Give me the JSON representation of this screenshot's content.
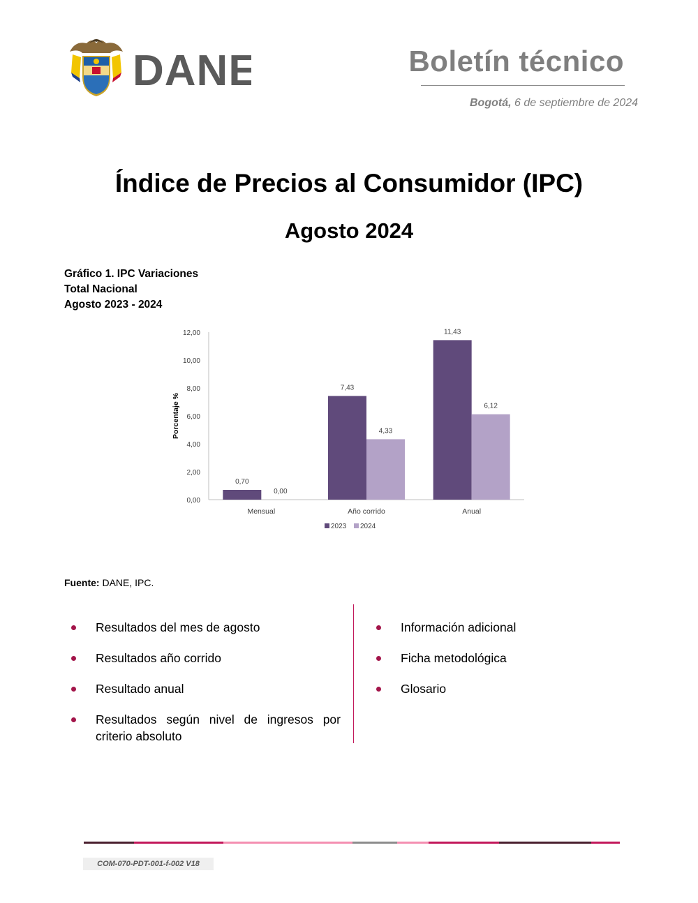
{
  "header": {
    "logo_text": "DANE",
    "title": "Boletín técnico",
    "date_city": "Bogotá,",
    "date_text": "6 de septiembre de 2024"
  },
  "document": {
    "title": "Índice de Precios al Consumidor (IPC)",
    "subtitle": "Agosto 2024"
  },
  "chart_caption": {
    "line1": "Gráfico 1. IPC Variaciones",
    "line2": "Total Nacional",
    "line3": "Agosto 2023 - 2024"
  },
  "chart_data": {
    "type": "bar",
    "categories": [
      "Mensual",
      "Año corrido",
      "Anual"
    ],
    "series": [
      {
        "name": "2023",
        "values": [
          0.7,
          7.43,
          11.43
        ],
        "labels": [
          "0,70",
          "7,43",
          "11,43"
        ],
        "color": "#604a7b"
      },
      {
        "name": "2024",
        "values": [
          0.0,
          4.33,
          6.12
        ],
        "labels": [
          "0,00",
          "4,33",
          "6,12"
        ],
        "color": "#b3a2c7"
      }
    ],
    "ylabel": "Porcentaje %",
    "ylim": [
      0,
      12
    ],
    "yticks": [
      "0,00",
      "2,00",
      "4,00",
      "6,00",
      "8,00",
      "10,00",
      "12,00"
    ],
    "grid": false,
    "legend": "bottom-center"
  },
  "source": {
    "label": "Fuente:",
    "text": "DANE, IPC."
  },
  "contents": {
    "left": [
      "Resultados del mes de agosto",
      "Resultados año corrido",
      "Resultado anual",
      "Resultados según nivel de ingresos por criterio absoluto"
    ],
    "right": [
      "Información adicional",
      "Ficha metodológica",
      "Glosario"
    ]
  },
  "footer": {
    "code": "COM-070-PDT-001-f-002 V18"
  },
  "colors": {
    "accent": "#a3154a",
    "bar_2023": "#604a7b",
    "bar_2024": "#b3a2c7",
    "header_gray": "#7f7f7f"
  }
}
